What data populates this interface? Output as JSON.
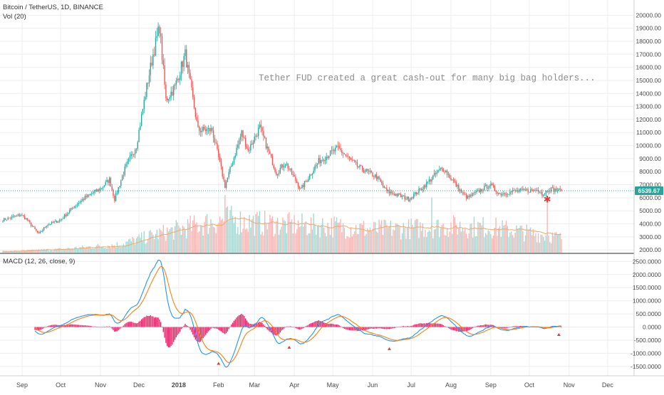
{
  "colors": {
    "up": "#26a69a",
    "down": "#ef5350",
    "vol_up": "#a5d6d1",
    "vol_down": "#f7b6b4",
    "vol_ma": "#f1a86a",
    "macd_line": "#2196f3",
    "signal_line": "#ff7f0e",
    "histogram": "#e91e63",
    "last_price_bg": "#26a69a",
    "grid": "#eeeeee"
  },
  "price_pane": {
    "legend_title": "Bitcoin / TetherUS, 1D, BINANCE",
    "legend_volume": "Vol (20)",
    "annotation": "Tether FUD created a great cash-out for many big bag holders...",
    "last_price_label": "6539.67",
    "y_ticks": [
      "20000.00",
      "19000.00",
      "18000.00",
      "17000.00",
      "16000.00",
      "15000.00",
      "14000.00",
      "13000.00",
      "12000.00",
      "11000.00",
      "10000.00",
      "9000.00",
      "8000.00",
      "7000.00",
      "6000.00",
      "5000.00",
      "4000.00",
      "3000.00",
      "2000.00"
    ]
  },
  "macd_pane": {
    "legend": "MACD (12, 26, close, 9)",
    "y_ticks": [
      "2500.0000",
      "2000.0000",
      "1500.0000",
      "1000.0000",
      "500.0000",
      "0.0000",
      "-500.0000",
      "-1000.0000",
      "-1500.0000"
    ]
  },
  "x_axis": {
    "labels": [
      "Sep",
      "Oct",
      "Nov",
      "Dec",
      "2018",
      "Feb",
      "Mar",
      "Apr",
      "May",
      "Jun",
      "Jul",
      "Aug",
      "Sep",
      "Oct",
      "Nov",
      "Dec"
    ]
  },
  "chart_data": {
    "type": "candlestick",
    "title": "Bitcoin / TetherUS, 1D, BINANCE",
    "x_start": "2017-08-17",
    "x_end": "2018-10-26",
    "close_anchors": [
      [
        "2017-08-17",
        4300
      ],
      [
        "2017-08-31",
        4700
      ],
      [
        "2017-09-04",
        4400
      ],
      [
        "2017-09-14",
        3200
      ],
      [
        "2017-09-20",
        3900
      ],
      [
        "2017-10-01",
        4300
      ],
      [
        "2017-10-12",
        5400
      ],
      [
        "2017-10-20",
        6000
      ],
      [
        "2017-11-01",
        6700
      ],
      [
        "2017-11-08",
        7400
      ],
      [
        "2017-11-12",
        5900
      ],
      [
        "2017-11-20",
        8200
      ],
      [
        "2017-11-29",
        10000
      ],
      [
        "2017-12-07",
        14500
      ],
      [
        "2017-12-12",
        17000
      ],
      [
        "2017-12-17",
        19100
      ],
      [
        "2017-12-22",
        13500
      ],
      [
        "2017-12-29",
        14500
      ],
      [
        "2018-01-06",
        17000
      ],
      [
        "2018-01-16",
        11200
      ],
      [
        "2018-01-27",
        11200
      ],
      [
        "2018-02-06",
        6900
      ],
      [
        "2018-02-19",
        11000
      ],
      [
        "2018-02-24",
        9600
      ],
      [
        "2018-03-05",
        11400
      ],
      [
        "2018-03-18",
        7900
      ],
      [
        "2018-03-25",
        8700
      ],
      [
        "2018-04-06",
        6650
      ],
      [
        "2018-04-20",
        8800
      ],
      [
        "2018-05-05",
        9800
      ],
      [
        "2018-05-20",
        8400
      ],
      [
        "2018-06-04",
        7600
      ],
      [
        "2018-06-12",
        6500
      ],
      [
        "2018-06-29",
        5900
      ],
      [
        "2018-07-09",
        6700
      ],
      [
        "2018-07-24",
        8200
      ],
      [
        "2018-07-27",
        8150
      ],
      [
        "2018-08-10",
        6300
      ],
      [
        "2018-08-14",
        6000
      ],
      [
        "2018-08-31",
        7000
      ],
      [
        "2018-09-08",
        6300
      ],
      [
        "2018-09-20",
        6500
      ],
      [
        "2018-10-10",
        6600
      ],
      [
        "2018-10-11",
        6200
      ],
      [
        "2018-10-16",
        6700
      ],
      [
        "2018-10-26",
        6540
      ]
    ],
    "volume_anchors": [
      [
        "2017-08-17",
        100
      ],
      [
        "2017-10-01",
        300
      ],
      [
        "2017-11-15",
        700
      ],
      [
        "2017-12-15",
        1600
      ],
      [
        "2018-01-16",
        2400
      ],
      [
        "2018-02-06",
        2900
      ],
      [
        "2018-03-01",
        2600
      ],
      [
        "2018-04-01",
        2400
      ],
      [
        "2018-05-01",
        2300
      ],
      [
        "2018-06-01",
        2000
      ],
      [
        "2018-07-01",
        2100
      ],
      [
        "2018-08-01",
        2300
      ],
      [
        "2018-09-01",
        2200
      ],
      [
        "2018-10-01",
        1700
      ],
      [
        "2018-10-26",
        1300
      ]
    ],
    "volume_spikes": [
      [
        "2018-02-06",
        5000
      ],
      [
        "2018-07-17",
        4800
      ],
      [
        "2018-10-15",
        4500
      ]
    ],
    "price_axis": {
      "min": 1900,
      "max": 20400,
      "scale": "linear"
    },
    "volume_axis": {
      "max": 7300,
      "unit": "volume, drawn in the lower part of the price pane"
    },
    "macd_params": {
      "fast": 12,
      "slow": 26,
      "signal": 9
    },
    "macd_axis": {
      "min": -1750,
      "max": 2700
    },
    "last_price": 6539.67,
    "markers": [
      {
        "date": "2018-10-15",
        "shape": "star",
        "pane": "price"
      },
      {
        "date": "2018-02-01",
        "shape": "triangle",
        "pane": "macd"
      },
      {
        "date": "2018-03-28",
        "shape": "triangle",
        "pane": "macd"
      },
      {
        "date": "2018-06-14",
        "shape": "triangle",
        "pane": "macd"
      },
      {
        "date": "2018-10-24",
        "shape": "triangle",
        "pane": "macd"
      }
    ]
  }
}
